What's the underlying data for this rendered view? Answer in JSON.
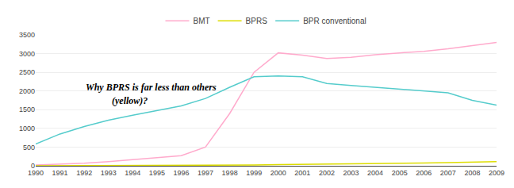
{
  "chart_data": {
    "type": "line",
    "x": [
      1990,
      1991,
      1992,
      1993,
      1994,
      1995,
      1996,
      1997,
      1998,
      1999,
      2000,
      2001,
      2002,
      2003,
      2004,
      2005,
      2006,
      2007,
      2008,
      2009
    ],
    "series": [
      {
        "name": "BMT",
        "color": "#ffaacc",
        "values": [
          20,
          40,
          70,
          110,
          160,
          220,
          270,
          500,
          1400,
          2500,
          3020,
          2960,
          2870,
          2900,
          2970,
          3020,
          3060,
          3130,
          3220,
          3300
        ]
      },
      {
        "name": "BPRS",
        "color": "#dddd00",
        "values": [
          2,
          3,
          4,
          5,
          6,
          8,
          10,
          12,
          15,
          20,
          30,
          40,
          50,
          55,
          60,
          65,
          75,
          85,
          95,
          110
        ]
      },
      {
        "name": "BPR conventional",
        "color": "#55cccc",
        "values": [
          580,
          850,
          1050,
          1220,
          1350,
          1480,
          1600,
          1800,
          2100,
          2380,
          2400,
          2380,
          2200,
          2150,
          2100,
          2050,
          2000,
          1950,
          1750,
          1620
        ]
      }
    ],
    "xlim": [
      1990,
      2009
    ],
    "xticks": [
      1990,
      1991,
      1992,
      1993,
      1994,
      1995,
      1996,
      1997,
      1998,
      1999,
      2000,
      2001,
      2002,
      2003,
      2004,
      2005,
      2006,
      2007,
      2008,
      2009
    ],
    "ylim": [
      0,
      3500
    ],
    "yticks": [
      0,
      500,
      1000,
      1500,
      2000,
      2500,
      3000,
      3500
    ],
    "grid": true,
    "legend": "top",
    "annotations": [
      {
        "text": "Why BPRS is far less than others",
        "x": 1992,
        "y": 1900
      },
      {
        "text": "           (yellow)?",
        "x": 1992,
        "y": 1550
      }
    ]
  }
}
